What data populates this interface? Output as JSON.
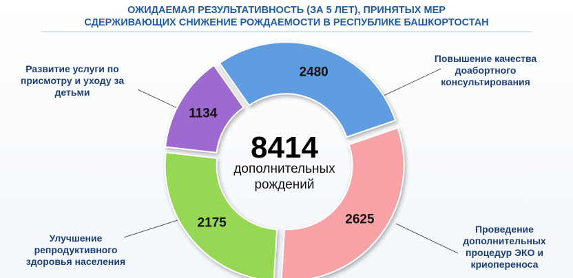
{
  "chart_data": {
    "type": "pie",
    "donut": true,
    "title": [
      "ОЖИДАЕМАЯ РЕЗУЛЬТАТИВНОСТЬ (ЗА 5 ЛЕТ), ПРИНЯТЫХ МЕР",
      "СДЕРЖИВАЮЩИХ СНИЖЕНИЕ РОЖДАЕМОСТИ В РЕСПУБЛИКЕ БАШКОРТОСТАН"
    ],
    "total": 8414,
    "center_label": "дополнительных рождений",
    "categories": [
      "Повышение качества доабортного консультирования",
      "Проведение дополнительных процедур ЭКО и криопереноса",
      "Улучшение репродуктивного здоровья населения",
      "Развитие услуги по присмотру и уходу за детьми"
    ],
    "values": [
      2480,
      2625,
      2175,
      1134
    ],
    "colors": [
      "#5f9de0",
      "#f7a3a6",
      "#96d852",
      "#9f6ad0"
    ]
  }
}
